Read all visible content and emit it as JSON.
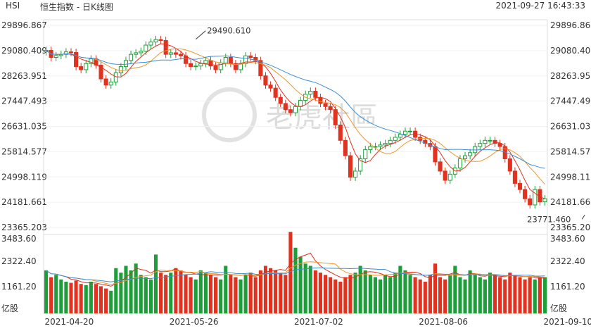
{
  "header": {
    "symbol": "HSI",
    "title": "恒生指数 - 日K线图",
    "timestamp": "2021-09-27 16:43:33"
  },
  "watermark": "老虎社區",
  "colors": {
    "up": "#1e9e3a",
    "down": "#e0321e",
    "ma5": "#e0321e",
    "ma10": "#f0962a",
    "ma20": "#3a8fd6",
    "vol_ma5": "#e0321e",
    "vol_ma10": "#f0962a",
    "vol_ma20": "#3a8fd6",
    "grid": "#dddddd"
  },
  "chart_data": [
    {
      "type": "candlestick",
      "y_ticks": [
        "29896.867",
        "29080.409",
        "28263.951",
        "27447.493",
        "26631.035",
        "25814.577",
        "24998.119",
        "24181.661",
        "23365.203"
      ],
      "ylim": [
        23365.203,
        29896.867
      ],
      "x_ticks": [
        {
          "label": "2021-04-20",
          "index": 0
        },
        {
          "label": "2021-05-26",
          "index": 25
        },
        {
          "label": "2021-07-02",
          "index": 50
        },
        {
          "label": "2021-08-06",
          "index": 75
        },
        {
          "label": "2021-09-10",
          "index": 100
        }
      ],
      "annotations": [
        {
          "text": "29490.610",
          "index": 30,
          "value": 29490.61
        },
        {
          "text": "23771.460",
          "index": 108,
          "value": 23771.46
        }
      ],
      "close": [
        29130,
        28900,
        28960,
        29000,
        29080,
        29060,
        28600,
        28500,
        28700,
        28850,
        28650,
        28200,
        28000,
        28100,
        28400,
        28600,
        28800,
        29000,
        29050,
        29100,
        29300,
        29400,
        29480,
        29450,
        29000,
        29050,
        29000,
        28950,
        28700,
        28600,
        28620,
        28700,
        28800,
        28620,
        28500,
        28720,
        28900,
        28700,
        28500,
        28700,
        28950,
        28900,
        28800,
        28300,
        28000,
        27900,
        27600,
        27400,
        27200,
        27100,
        27300,
        27500,
        27700,
        27800,
        27600,
        27400,
        27300,
        27200,
        26700,
        26200,
        25700,
        25000,
        25200,
        25600,
        25900,
        26000,
        26000,
        26050,
        26100,
        26200,
        26300,
        26400,
        26500,
        26500,
        26300,
        26200,
        26100,
        26000,
        25500,
        25200,
        24900,
        25100,
        25300,
        25600,
        25700,
        25800,
        26000,
        26100,
        26200,
        26200,
        26100,
        26000,
        25600,
        25200,
        24800,
        24600,
        24300,
        24100,
        24600,
        24200,
        24300
      ],
      "open": [
        29080,
        29130,
        28900,
        28960,
        29000,
        29080,
        29060,
        28600,
        28500,
        28700,
        28850,
        28650,
        28200,
        28000,
        28100,
        28400,
        28600,
        28800,
        29000,
        29050,
        29100,
        29300,
        29400,
        29480,
        29450,
        29000,
        29050,
        29000,
        28950,
        28700,
        28600,
        28620,
        28700,
        28800,
        28620,
        28500,
        28720,
        28900,
        28700,
        28500,
        28700,
        28950,
        28900,
        28800,
        28300,
        28000,
        27900,
        27600,
        27400,
        27200,
        27100,
        27300,
        27500,
        27700,
        27800,
        27600,
        27400,
        27300,
        27200,
        26700,
        26200,
        25700,
        25000,
        25200,
        25600,
        25900,
        26000,
        26000,
        26050,
        26100,
        26200,
        26300,
        26400,
        26500,
        26500,
        26300,
        26200,
        26100,
        26000,
        25500,
        25200,
        24900,
        25100,
        25300,
        25600,
        25700,
        25800,
        26000,
        26100,
        26200,
        26200,
        26100,
        26000,
        25600,
        25200,
        24800,
        24600,
        24300,
        24100,
        24600,
        24200
      ],
      "volume": [
        1900,
        1600,
        1700,
        1500,
        1400,
        1350,
        1450,
        1300,
        1250,
        1400,
        1300,
        1200,
        1100,
        1000,
        2000,
        1800,
        2100,
        1900,
        2200,
        1700,
        1600,
        1500,
        2600,
        1800,
        1700,
        1800,
        2000,
        1900,
        1700,
        1600,
        1500,
        1900,
        1800,
        1700,
        1600,
        1500,
        2100,
        1700,
        1600,
        1500,
        1700,
        1800,
        1600,
        1900,
        2100,
        2000,
        1900,
        1800,
        1700,
        3600,
        2900,
        2500,
        2200,
        2100,
        1900,
        1800,
        1700,
        1600,
        1500,
        1400,
        1600,
        1700,
        1800,
        2100,
        1900,
        1700,
        1600,
        1500,
        1700,
        1600,
        1800,
        2100,
        1900,
        1700,
        1600,
        1500,
        1400,
        1700,
        2200,
        1600,
        1500,
        1700,
        2100,
        1600,
        1500,
        1900,
        1700,
        1600,
        1500,
        1800,
        1700,
        1600,
        1500,
        1800,
        1700,
        1600,
        1500,
        1600,
        1500,
        1600,
        1600
      ],
      "vol_ticks": [
        "3483.60",
        "2322.40",
        "1161.20"
      ],
      "vol_unit": "亿股",
      "vol_max": 3483.6
    }
  ]
}
